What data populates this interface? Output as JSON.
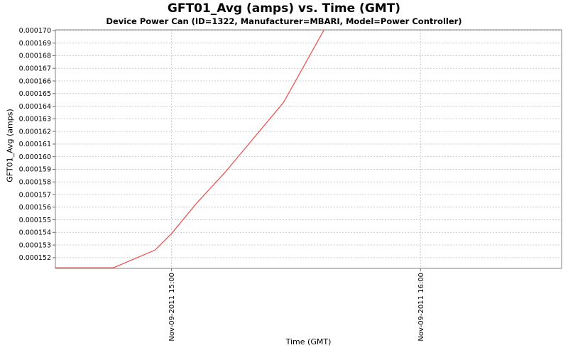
{
  "chart_data": {
    "type": "line",
    "title": "GFT01_Avg (amps) vs. Time (GMT)",
    "subtitle": "Device Power Can (ID=1322, Manufacturer=MBARI, Model=Power Controller)",
    "xlabel": "Time (GMT)",
    "ylabel": "GFT01_Avg (amps)",
    "legend": "none",
    "grid": "dashed",
    "xticks": [
      "Nov-09-2011 15:00",
      "Nov-09-2011 16:00"
    ],
    "yticks": [
      "0.000152",
      "0.000153",
      "0.000154",
      "0.000155",
      "0.000156",
      "0.000157",
      "0.000158",
      "0.000159",
      "0.000160",
      "0.000161",
      "0.000162",
      "0.000163",
      "0.000164",
      "0.000165",
      "0.000166",
      "0.000167",
      "0.000168",
      "0.000169",
      "0.000170"
    ],
    "xlim": [
      "Nov-09-2011 14:32",
      "Nov-09-2011 16:34"
    ],
    "ylim": [
      0.00015115,
      0.00017005
    ],
    "series": [
      {
        "name": "GFT01_Avg",
        "color": "#ee5454",
        "points": [
          [
            "Nov-09-2011 14:32",
            0.0001512
          ],
          [
            "Nov-09-2011 14:46",
            0.0001512
          ],
          [
            "Nov-09-2011 14:56",
            0.0001526
          ],
          [
            "Nov-09-2011 15:00",
            0.0001539
          ],
          [
            "Nov-09-2011 15:06",
            0.0001563
          ],
          [
            "Nov-09-2011 15:13",
            0.0001588
          ],
          [
            "Nov-09-2011 15:27",
            0.0001643
          ],
          [
            "Nov-09-2011 15:37",
            0.0001702
          ]
        ]
      }
    ],
    "colors": {
      "grid": "#cccccc",
      "axis_border": "#808080",
      "tick_mark": "#666666",
      "tick_text": "#000000",
      "background": "#ffffff"
    }
  }
}
